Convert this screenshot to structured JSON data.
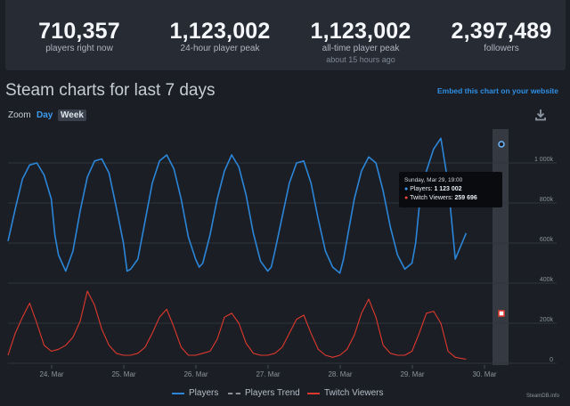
{
  "stats": [
    {
      "value": "710,357",
      "label": "players right now",
      "sub": ""
    },
    {
      "value": "1,123,002",
      "label": "24-hour player peak",
      "sub": ""
    },
    {
      "value": "1,123,002",
      "label": "all-time player peak",
      "sub": "about 15 hours ago"
    },
    {
      "value": "2,397,489",
      "label": "followers",
      "sub": ""
    }
  ],
  "header": {
    "title": "Steam charts for last 7 days",
    "embed_link": "Embed this chart on your website"
  },
  "zoom": {
    "label": "Zoom",
    "day": "Day",
    "week": "Week",
    "active": "Week"
  },
  "tooltip": {
    "date": "Sunday, Mar 29, 19:00",
    "players_label": "Players:",
    "players_value": "1 123 002",
    "twitch_label": "Twitch Viewers:",
    "twitch_value": "259 696"
  },
  "legend": {
    "players": "Players",
    "trend": "Players Trend",
    "twitch": "Twitch Viewers"
  },
  "credit": "SteamDB.info",
  "colors": {
    "players": "#2b86d9",
    "twitch": "#e0392e",
    "background": "#1b1e24",
    "panel": "#262b34",
    "link": "#2f8fe5"
  },
  "icons": {
    "download": "download-icon"
  },
  "chart_data": {
    "type": "line",
    "x_tick_labels": [
      "24. Mar",
      "25. Mar",
      "26. Mar",
      "27. Mar",
      "28. Mar",
      "29. Mar",
      "30. Mar"
    ],
    "y_tick_labels": [
      "0",
      "200k",
      "400k",
      "600k",
      "800k",
      "1 000k"
    ],
    "ylim": [
      0,
      1200000
    ],
    "grid": true,
    "legend_position": "bottom",
    "series": [
      {
        "name": "Players",
        "x_days": [
          0,
          0.1,
          0.2,
          0.3,
          0.4,
          0.5,
          0.6,
          0.65,
          0.7,
          0.8,
          0.9,
          1.0,
          1.1,
          1.2,
          1.3,
          1.4,
          1.5,
          1.6,
          1.65,
          1.7,
          1.8,
          1.9,
          2.0,
          2.1,
          2.2,
          2.3,
          2.4,
          2.5,
          2.6,
          2.65,
          2.7,
          2.8,
          2.9,
          3.0,
          3.1,
          3.2,
          3.3,
          3.4,
          3.5,
          3.6,
          3.65,
          3.7,
          3.8,
          3.9,
          4.0,
          4.1,
          4.2,
          4.3,
          4.4,
          4.5,
          4.6,
          4.65,
          4.7,
          4.8,
          4.9,
          5.0,
          5.1,
          5.2,
          5.3,
          5.4,
          5.5,
          5.6,
          5.65,
          5.7,
          5.8,
          5.9,
          6.0,
          6.1,
          6.2,
          6.35
        ],
        "values": [
          610000,
          770000,
          920000,
          990000,
          1000000,
          940000,
          820000,
          640000,
          540000,
          460000,
          560000,
          760000,
          930000,
          1010000,
          1020000,
          950000,
          780000,
          600000,
          460000,
          470000,
          520000,
          710000,
          900000,
          1010000,
          1040000,
          970000,
          820000,
          630000,
          520000,
          480000,
          500000,
          640000,
          820000,
          960000,
          1040000,
          980000,
          840000,
          650000,
          510000,
          460000,
          480000,
          560000,
          730000,
          900000,
          1000000,
          1010000,
          900000,
          720000,
          560000,
          480000,
          450000,
          520000,
          620000,
          820000,
          960000,
          1030000,
          1000000,
          860000,
          680000,
          540000,
          470000,
          500000,
          600000,
          780000,
          960000,
          1070000,
          1123002,
          900000,
          520000,
          650000
        ],
        "note": "x_days are days since 23. Mar 17:00"
      },
      {
        "name": "Twitch Viewers",
        "x_days": [
          0,
          0.1,
          0.2,
          0.3,
          0.4,
          0.5,
          0.6,
          0.7,
          0.8,
          0.9,
          1.0,
          1.1,
          1.2,
          1.3,
          1.4,
          1.5,
          1.6,
          1.7,
          1.8,
          1.9,
          2.0,
          2.1,
          2.2,
          2.3,
          2.4,
          2.5,
          2.6,
          2.7,
          2.8,
          2.9,
          3.0,
          3.1,
          3.2,
          3.3,
          3.4,
          3.5,
          3.6,
          3.7,
          3.8,
          3.9,
          4.0,
          4.1,
          4.2,
          4.3,
          4.4,
          4.5,
          4.6,
          4.7,
          4.8,
          4.9,
          5.0,
          5.1,
          5.2,
          5.3,
          5.4,
          5.5,
          5.6,
          5.7,
          5.8,
          5.9,
          6.0,
          6.1,
          6.2,
          6.35
        ],
        "values": [
          40000,
          150000,
          230000,
          300000,
          200000,
          90000,
          60000,
          70000,
          90000,
          130000,
          210000,
          360000,
          290000,
          170000,
          90000,
          50000,
          40000,
          40000,
          50000,
          80000,
          150000,
          230000,
          270000,
          180000,
          80000,
          40000,
          40000,
          50000,
          60000,
          120000,
          230000,
          250000,
          200000,
          100000,
          50000,
          40000,
          40000,
          50000,
          80000,
          150000,
          220000,
          240000,
          150000,
          70000,
          40000,
          30000,
          40000,
          70000,
          140000,
          250000,
          320000,
          230000,
          90000,
          50000,
          40000,
          40000,
          60000,
          150000,
          250000,
          259696,
          200000,
          60000,
          30000,
          20000
        ]
      }
    ]
  }
}
